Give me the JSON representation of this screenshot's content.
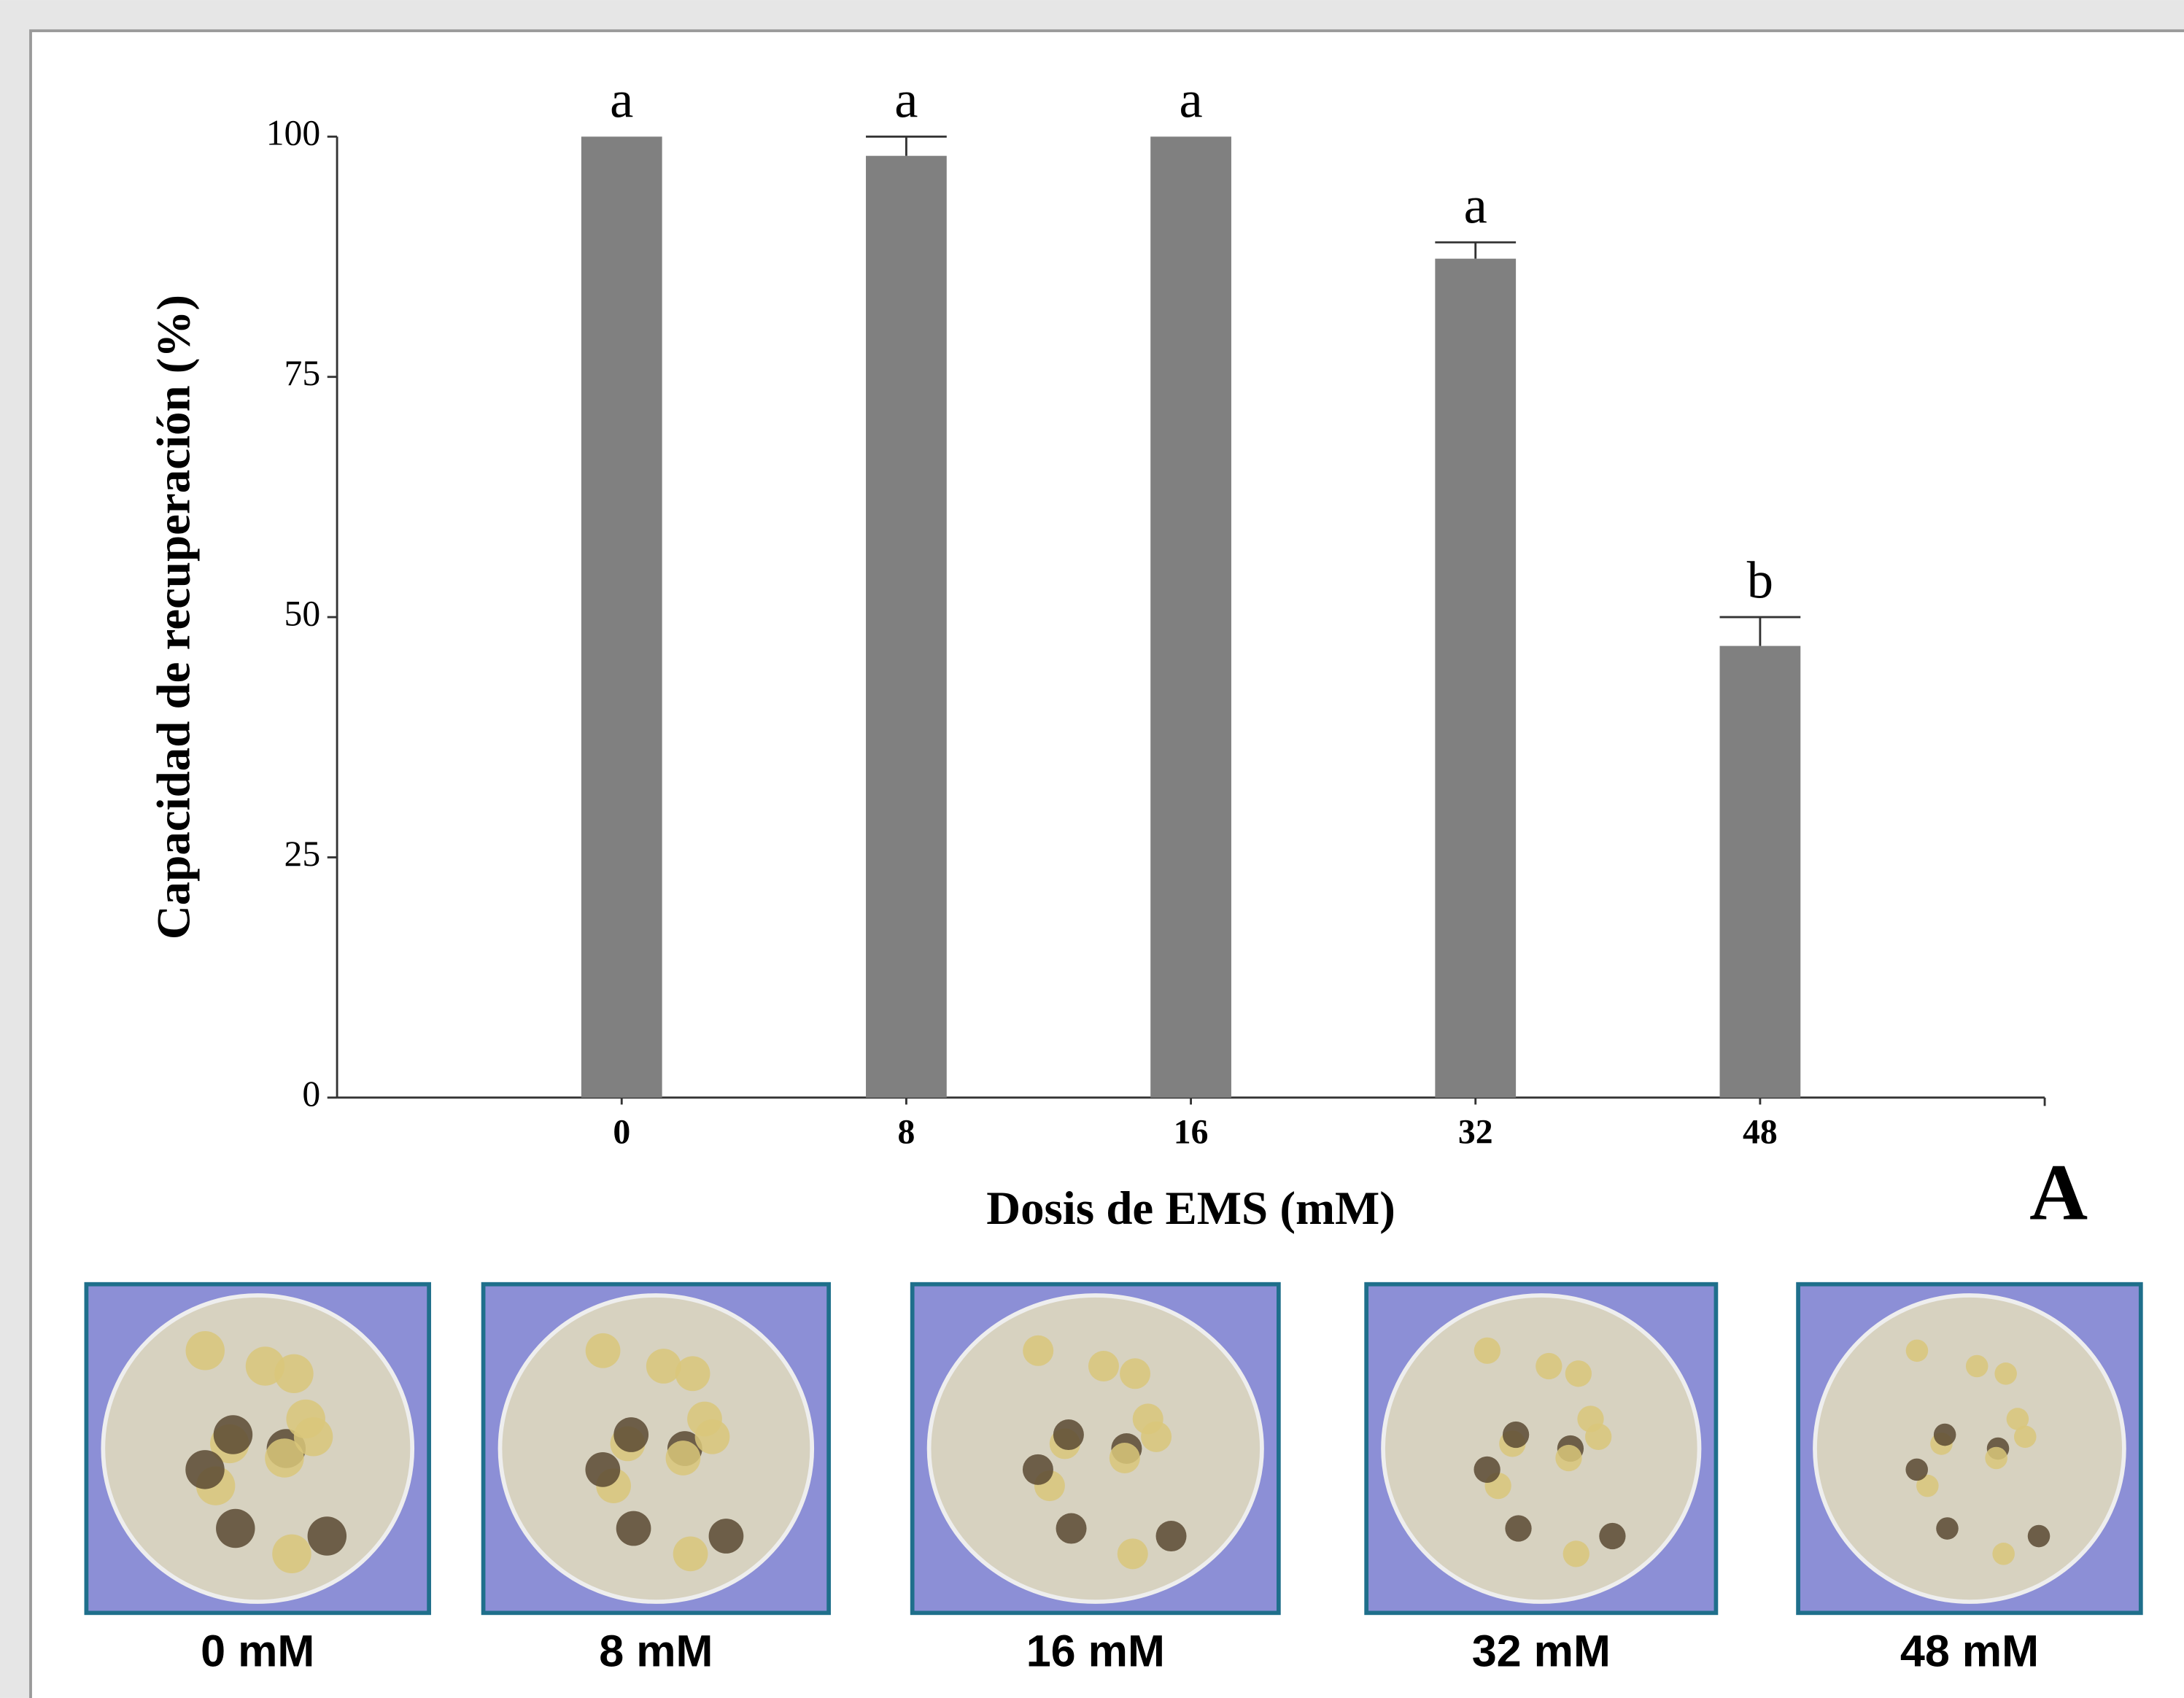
{
  "chart_data": {
    "type": "bar",
    "y_label": "Capacidad de recuperación (%)",
    "x_label": "Dosis de EMS (mM)",
    "categories": [
      "0",
      "8",
      "16",
      "32",
      "48"
    ],
    "values": [
      100,
      98,
      100,
      87.3,
      47
    ],
    "errors": [
      0,
      2,
      0,
      1.7,
      3
    ],
    "letters": [
      "a",
      "a",
      "a",
      "a",
      "b"
    ],
    "color": "#808080",
    "ylim": [
      0,
      100
    ],
    "yticks": [
      0,
      25,
      50,
      75,
      100
    ]
  },
  "panel_label": "A",
  "photo_captions": [
    "0 mM",
    "8 mM",
    "16 mM",
    "32 mM",
    "48 mM"
  ]
}
